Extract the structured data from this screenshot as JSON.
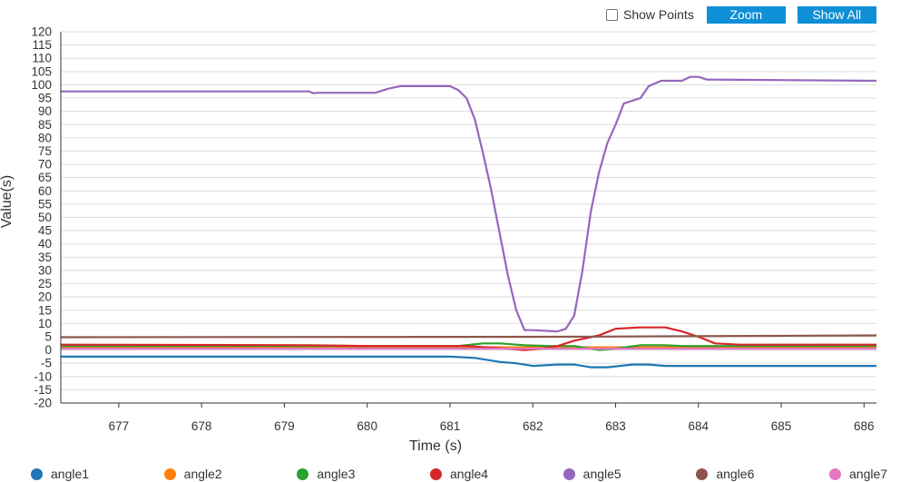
{
  "toolbar": {
    "show_points_label": "Show Points",
    "zoom_label": "Zoom",
    "show_all_label": "Show All"
  },
  "chart_data": {
    "type": "line",
    "xlabel": "Time (s)",
    "ylabel": "Value(s)",
    "xlim": [
      676.3,
      686.15
    ],
    "ylim": [
      -20,
      120
    ],
    "x_ticks": [
      677,
      678,
      679,
      680,
      681,
      682,
      683,
      684,
      685,
      686
    ],
    "y_ticks": [
      -20,
      -15,
      -10,
      -5,
      0,
      5,
      10,
      15,
      20,
      25,
      30,
      35,
      40,
      45,
      50,
      55,
      60,
      65,
      70,
      75,
      80,
      85,
      90,
      95,
      100,
      105,
      110,
      115,
      120
    ],
    "grid": true,
    "legend_position": "bottom",
    "series": [
      {
        "name": "angle1",
        "color": "#1f77b4",
        "points": [
          [
            676.3,
            -2.5
          ],
          [
            681.0,
            -2.5
          ],
          [
            681.3,
            -3
          ],
          [
            681.6,
            -4.5
          ],
          [
            681.8,
            -5
          ],
          [
            682.0,
            -6
          ],
          [
            682.3,
            -5.5
          ],
          [
            682.5,
            -5.5
          ],
          [
            682.7,
            -6.5
          ],
          [
            682.9,
            -6.5
          ],
          [
            683.2,
            -5.5
          ],
          [
            683.4,
            -5.5
          ],
          [
            683.6,
            -6
          ],
          [
            684.0,
            -6
          ],
          [
            686.15,
            -6
          ]
        ]
      },
      {
        "name": "angle2",
        "color": "#ff7f0e",
        "points": [
          [
            676.3,
            1
          ],
          [
            686.15,
            1
          ]
        ]
      },
      {
        "name": "angle3",
        "color": "#2ca02c",
        "points": [
          [
            676.3,
            1.5
          ],
          [
            681.1,
            1.5
          ],
          [
            681.4,
            2.5
          ],
          [
            681.6,
            2.5
          ],
          [
            681.9,
            1.8
          ],
          [
            682.2,
            1.5
          ],
          [
            682.5,
            1.5
          ],
          [
            682.8,
            0
          ],
          [
            683.0,
            0.5
          ],
          [
            683.3,
            1.8
          ],
          [
            683.6,
            1.8
          ],
          [
            683.8,
            1.5
          ],
          [
            684.2,
            1.5
          ],
          [
            686.15,
            1.5
          ]
        ]
      },
      {
        "name": "angle4",
        "color": "#d62728",
        "points": [
          [
            676.3,
            2
          ],
          [
            679.3,
            1.8
          ],
          [
            680.0,
            1.5
          ],
          [
            681.2,
            1.5
          ],
          [
            681.7,
            0.5
          ],
          [
            681.9,
            0
          ],
          [
            682.1,
            0.5
          ],
          [
            682.3,
            1.5
          ],
          [
            682.5,
            3.5
          ],
          [
            682.8,
            5.5
          ],
          [
            683.0,
            8
          ],
          [
            683.3,
            8.5
          ],
          [
            683.6,
            8.5
          ],
          [
            683.8,
            7
          ],
          [
            684.0,
            5
          ],
          [
            684.2,
            2.5
          ],
          [
            684.5,
            2
          ],
          [
            686.15,
            2
          ]
        ]
      },
      {
        "name": "angle5",
        "color": "#9467bd",
        "points": [
          [
            676.3,
            97.5
          ],
          [
            679.3,
            97.5
          ],
          [
            679.35,
            96.8
          ],
          [
            679.4,
            97
          ],
          [
            680.1,
            97
          ],
          [
            680.25,
            98.5
          ],
          [
            680.4,
            99.5
          ],
          [
            681.0,
            99.5
          ],
          [
            681.1,
            98
          ],
          [
            681.2,
            95
          ],
          [
            681.3,
            87
          ],
          [
            681.4,
            74
          ],
          [
            681.5,
            60
          ],
          [
            681.6,
            44
          ],
          [
            681.7,
            28
          ],
          [
            681.8,
            15
          ],
          [
            681.9,
            7.5
          ],
          [
            682.0,
            7.5
          ],
          [
            682.3,
            7
          ],
          [
            682.4,
            8
          ],
          [
            682.5,
            13
          ],
          [
            682.6,
            30
          ],
          [
            682.7,
            52
          ],
          [
            682.8,
            67
          ],
          [
            682.9,
            78
          ],
          [
            683.0,
            85
          ],
          [
            683.1,
            93
          ],
          [
            683.2,
            94
          ],
          [
            683.3,
            95
          ],
          [
            683.4,
            99.5
          ],
          [
            683.55,
            101.5
          ],
          [
            683.8,
            101.5
          ],
          [
            683.9,
            103
          ],
          [
            684.0,
            103
          ],
          [
            684.1,
            102
          ],
          [
            686.15,
            101.5
          ]
        ]
      },
      {
        "name": "angle6",
        "color": "#8c564b",
        "points": [
          [
            676.3,
            4.8
          ],
          [
            682.3,
            5
          ],
          [
            686.15,
            5.5
          ]
        ]
      },
      {
        "name": "angle7",
        "color": "#e377c2",
        "points": [
          [
            676.3,
            0.5
          ],
          [
            686.15,
            0.5
          ]
        ]
      }
    ]
  }
}
